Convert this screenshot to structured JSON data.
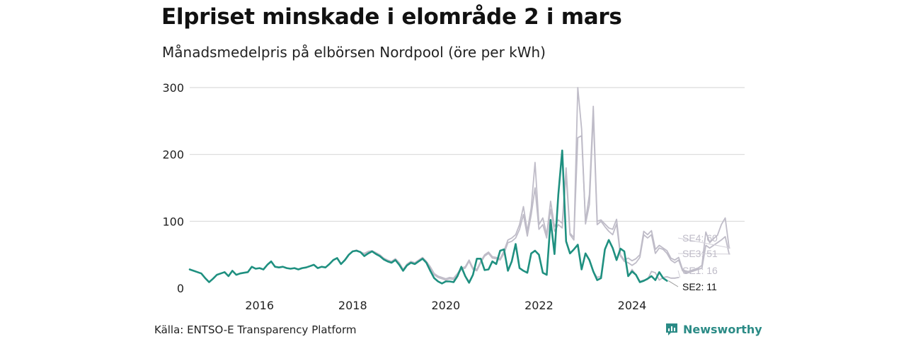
{
  "title": "Elpriset minskade i elområde 2 i mars",
  "subtitle": "Månadsmedelpris på elbörsen Nordpool (öre per kWh)",
  "source": "Källa: ENTSO-E Transparency Platform",
  "brand": {
    "name": "Newsworthy",
    "icon": "newsworthy-logo-icon"
  },
  "colors": {
    "highlight": "#1f9080",
    "other": "#bfbcc8",
    "grid": "#d9d9d9",
    "brand": "#2b8b86"
  },
  "chart_data": {
    "type": "line",
    "x_start": "2015-01",
    "x_unit": "month",
    "xlim": [
      "2015-01",
      "2026-12"
    ],
    "ylim": [
      0,
      300
    ],
    "y_ticks": [
      0,
      100,
      200,
      300
    ],
    "x_ticks": [
      "2016",
      "2018",
      "2020",
      "2022",
      "2024"
    ],
    "grid": "horizontal",
    "series": [
      {
        "name": "SE4",
        "end_label": "SE4: 60",
        "color": "#bfbcc8",
        "values": [
          28,
          26,
          24,
          22,
          15,
          9,
          14,
          20,
          22,
          24,
          18,
          26,
          20,
          22,
          23,
          24,
          32,
          29,
          30,
          28,
          35,
          40,
          32,
          31,
          32,
          30,
          29,
          30,
          28,
          30,
          31,
          33,
          35,
          30,
          32,
          31,
          36,
          42,
          45,
          36,
          42,
          50,
          55,
          57,
          54,
          52,
          55,
          56,
          53,
          50,
          45,
          42,
          40,
          44,
          38,
          28,
          36,
          40,
          38,
          42,
          46,
          40,
          32,
          22,
          18,
          16,
          14,
          16,
          15,
          22,
          30,
          32,
          42,
          30,
          28,
          40,
          50,
          54,
          47,
          46,
          44,
          56,
          72,
          75,
          80,
          95,
          122,
          85,
          120,
          188,
          95,
          105,
          80,
          130,
          92,
          102,
          97,
          180,
          82,
          76,
          225,
          228,
          100,
          140,
          272,
          100,
          102,
          96,
          90,
          88,
          103,
          50,
          42,
          45,
          41,
          44,
          50,
          85,
          80,
          86,
          58,
          64,
          60,
          56,
          45,
          42,
          46,
          28,
          24,
          26,
          28,
          30,
          34,
          84,
          68,
          74,
          79,
          95,
          105,
          60
        ],
        "label_value": 60
      },
      {
        "name": "SE3",
        "end_label": "SE3: 51",
        "color": "#bfbcc8",
        "values": [
          28,
          26,
          24,
          22,
          15,
          9,
          14,
          20,
          22,
          24,
          18,
          26,
          20,
          22,
          23,
          24,
          32,
          29,
          30,
          28,
          35,
          40,
          32,
          31,
          32,
          30,
          29,
          30,
          28,
          30,
          31,
          33,
          35,
          30,
          32,
          31,
          36,
          42,
          45,
          36,
          42,
          50,
          55,
          56,
          54,
          51,
          54,
          55,
          52,
          49,
          44,
          41,
          40,
          43,
          37,
          27,
          35,
          39,
          37,
          41,
          45,
          39,
          30,
          20,
          16,
          14,
          12,
          14,
          13,
          20,
          28,
          30,
          40,
          28,
          26,
          38,
          48,
          52,
          45,
          44,
          42,
          52,
          68,
          70,
          75,
          88,
          110,
          78,
          110,
          150,
          88,
          95,
          75,
          118,
          85,
          95,
          90,
          170,
          80,
          72,
          300,
          238,
          96,
          125,
          260,
          95,
          100,
          92,
          85,
          80,
          96,
          48,
          40,
          38,
          34,
          38,
          46,
          80,
          75,
          80,
          52,
          60,
          58,
          52,
          42,
          38,
          42,
          26,
          22,
          24,
          26,
          28,
          30,
          64,
          60,
          64,
          68,
          72,
          77,
          51
        ],
        "label_value": 51
      },
      {
        "name": "SE1",
        "end_label": "SE1: 16",
        "color": "#bfbcc8",
        "values": [
          28,
          26,
          24,
          22,
          15,
          9,
          14,
          20,
          22,
          24,
          18,
          26,
          20,
          22,
          23,
          24,
          32,
          29,
          30,
          28,
          35,
          40,
          32,
          31,
          32,
          30,
          29,
          30,
          28,
          30,
          31,
          33,
          35,
          30,
          32,
          31,
          36,
          42,
          45,
          36,
          42,
          50,
          55,
          56,
          54,
          48,
          52,
          55,
          51,
          48,
          43,
          40,
          38,
          42,
          35,
          26,
          34,
          38,
          36,
          40,
          44,
          38,
          26,
          15,
          10,
          7,
          10,
          10,
          9,
          18,
          30,
          18,
          10,
          20,
          44,
          44,
          27,
          28,
          40,
          36,
          56,
          58,
          26,
          40,
          66,
          30,
          26,
          23,
          52,
          56,
          50,
          23,
          20,
          102,
          51,
          140,
          206,
          70,
          52,
          58,
          65,
          28,
          52,
          42,
          25,
          16,
          18,
          58,
          72,
          60,
          42,
          59,
          55,
          18,
          28,
          20,
          10,
          12,
          13,
          25,
          23,
          12,
          16,
          17,
          15,
          15,
          16
        ],
        "label_value": 16
      },
      {
        "name": "SE2",
        "end_label": "SE2: 11",
        "color": "#1f9080",
        "highlight": true,
        "values": [
          28,
          26,
          24,
          22,
          15,
          9,
          14,
          20,
          22,
          24,
          18,
          26,
          20,
          22,
          23,
          24,
          32,
          29,
          30,
          28,
          35,
          40,
          32,
          31,
          32,
          30,
          29,
          30,
          28,
          30,
          31,
          33,
          35,
          30,
          32,
          31,
          36,
          42,
          45,
          36,
          42,
          50,
          55,
          56,
          54,
          48,
          52,
          55,
          51,
          48,
          43,
          40,
          38,
          42,
          35,
          26,
          34,
          38,
          36,
          40,
          44,
          38,
          26,
          15,
          10,
          7,
          10,
          10,
          9,
          18,
          32,
          18,
          8,
          20,
          44,
          44,
          27,
          28,
          40,
          36,
          56,
          58,
          26,
          40,
          66,
          30,
          26,
          23,
          52,
          56,
          50,
          23,
          20,
          102,
          51,
          140,
          206,
          70,
          52,
          58,
          65,
          28,
          52,
          42,
          25,
          12,
          15,
          58,
          72,
          60,
          42,
          59,
          55,
          18,
          25,
          20,
          9,
          11,
          14,
          18,
          12,
          24,
          15,
          11
        ],
        "label_value": 11
      }
    ]
  }
}
